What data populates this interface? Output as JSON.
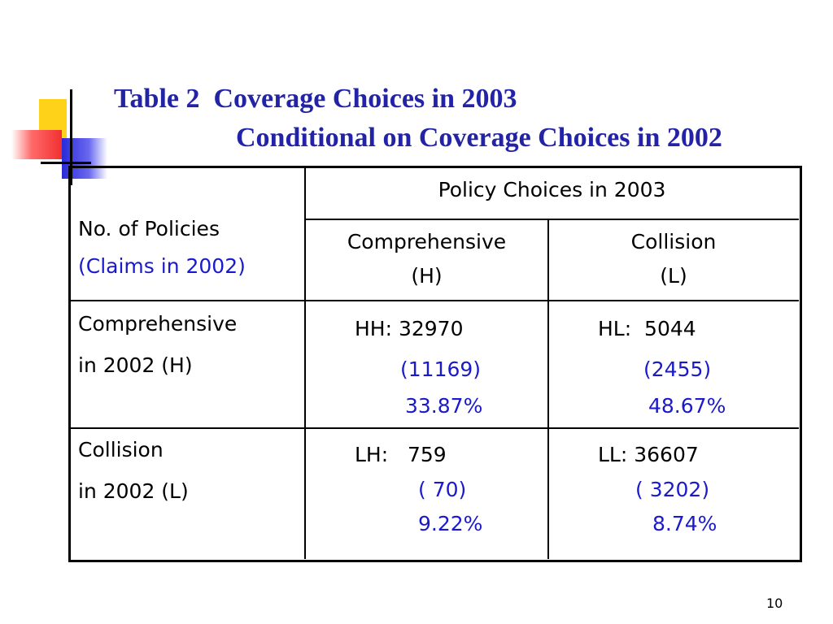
{
  "title": [
    "Table 2  Coverage Choices in 2003",
    "Conditional on Coverage Choices in 2002"
  ],
  "table": {
    "corner": [
      "No. of Policies",
      "(Claims in 2002)"
    ],
    "group_header": "Policy Choices in 2003",
    "columns": [
      [
        "Comprehensive",
        "(H)"
      ],
      [
        "Collision",
        "(L)"
      ]
    ],
    "rows": [
      {
        "label": [
          "Comprehensive",
          "in 2002 (H)"
        ],
        "cells": [
          [
            "HH: 32970",
            "(11169)",
            "33.87%"
          ],
          [
            "HL:  5044",
            "(2455)",
            "48.67%"
          ]
        ]
      },
      {
        "label": [
          "Collision",
          "in 2002 (L)"
        ],
        "cells": [
          [
            "LH:   759",
            "( 70)",
            "9.22%"
          ],
          [
            "LL: 36607",
            "( 3202)",
            "8.74%"
          ]
        ]
      }
    ]
  },
  "page_number": "10"
}
